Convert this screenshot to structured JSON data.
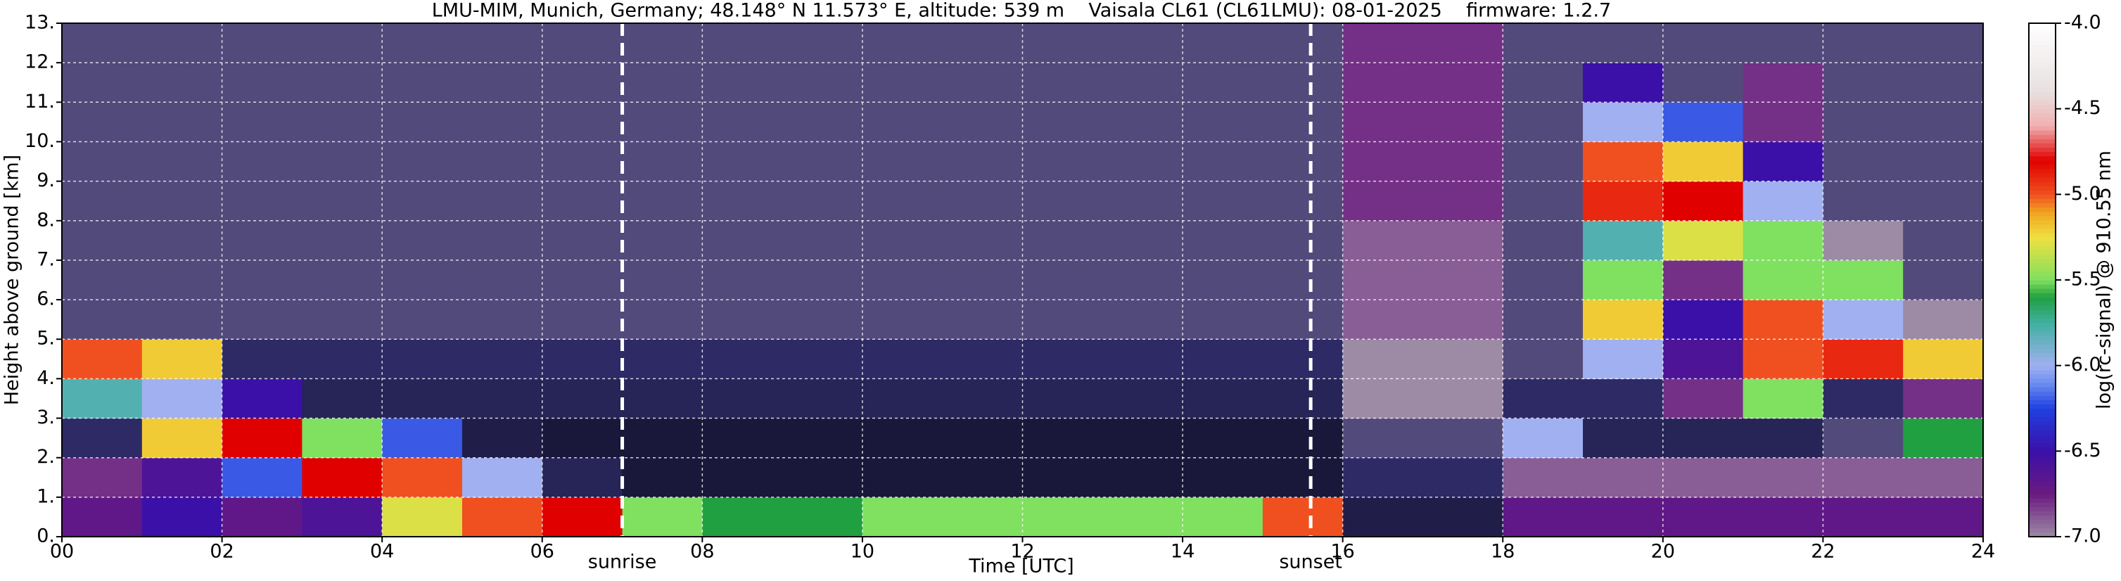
{
  "chart_data": {
    "type": "heatmap",
    "title": "LMU-MIM, Munich, Germany; 48.148° N 11.573° E, altitude: 539 m    Vaisala CL61 (CL61LMU): 08-01-2025    firmware: 1.2.7",
    "x_label": "Time [UTC]",
    "y_label": "Height above ground [km]",
    "colorbar_label": "log(rc-signal) @ 910.55 nm",
    "xlim": [
      0,
      24
    ],
    "ylim": [
      0,
      13
    ],
    "zlim": [
      -7,
      -4
    ],
    "xticks": [
      {
        "value": 0,
        "label": "00"
      },
      {
        "value": 2,
        "label": "02"
      },
      {
        "value": 4,
        "label": "04"
      },
      {
        "value": 6,
        "label": "06"
      },
      {
        "value": 8,
        "label": "08"
      },
      10,
      12,
      14,
      16,
      18,
      20,
      22,
      24
    ],
    "yticks": [
      {
        "value": 0,
        "label": "0."
      },
      {
        "value": 1,
        "label": "1."
      },
      {
        "value": 2,
        "label": "2."
      },
      {
        "value": 3,
        "label": "3."
      },
      {
        "value": 4,
        "label": "4."
      },
      {
        "value": 5,
        "label": "5."
      },
      {
        "value": 6,
        "label": "6."
      },
      {
        "value": 7,
        "label": "7."
      },
      {
        "value": 8,
        "label": "8."
      },
      {
        "value": 9,
        "label": "9."
      },
      {
        "value": 10,
        "label": "10."
      },
      {
        "value": 11,
        "label": "11."
      },
      {
        "value": 12,
        "label": "12."
      },
      {
        "value": 13,
        "label": "13."
      }
    ],
    "zticks": [
      {
        "value": -7,
        "label": "-7.0"
      },
      {
        "value": -6.5,
        "label": "-6.5"
      },
      {
        "value": -6,
        "label": "-6.0"
      },
      {
        "value": -5.5,
        "label": "-5.5"
      },
      {
        "value": -5,
        "label": "-5.0"
      },
      {
        "value": -4.5,
        "label": "-4.5"
      },
      {
        "value": -4,
        "label": "-4.0"
      }
    ],
    "grid": true,
    "grid_color": "#ffffff",
    "colormap": [
      [
        -8,
        "#000000"
      ],
      [
        -7.3,
        "#2d2a66"
      ],
      [
        -7,
        "#9d8aa5"
      ],
      [
        -6.75,
        "#6a1a80"
      ],
      [
        -6.5,
        "#3a10a8"
      ],
      [
        -6.25,
        "#2040e0"
      ],
      [
        -6.1,
        "#6d8ff0"
      ],
      [
        -6,
        "#a0b0f0"
      ],
      [
        -5.75,
        "#40b0a0"
      ],
      [
        -5.6,
        "#20a040"
      ],
      [
        -5.5,
        "#80e060"
      ],
      [
        -5.25,
        "#f0e040"
      ],
      [
        -5.1,
        "#f0a020"
      ],
      [
        -5,
        "#f05020"
      ],
      [
        -4.8,
        "#e00000"
      ],
      [
        -4.6,
        "#f0b0b0"
      ],
      [
        -4.4,
        "#e8e0e0"
      ],
      [
        -4,
        "#ffffff"
      ]
    ],
    "events": [
      {
        "label": "sunrise",
        "x": 7.0
      },
      {
        "label": "sunset",
        "x": 15.6
      }
    ],
    "x_edges": [
      0,
      1,
      2,
      3,
      4,
      5,
      6,
      7,
      8,
      9,
      10,
      11,
      12,
      13,
      14,
      15,
      16,
      17,
      18,
      19,
      20,
      21,
      22,
      23,
      24
    ],
    "y_edges": [
      0,
      1,
      2,
      3,
      4,
      5,
      6,
      7,
      8,
      9,
      10,
      11,
      12,
      13
    ],
    "z": [
      [
        -6.7,
        -6.5,
        -6.7,
        -6.6,
        -5.3,
        -5.0,
        -4.8,
        -5.5,
        -5.6,
        -5.6,
        -5.5,
        -5.5,
        -5.5,
        -5.5,
        -5.5,
        -5.0,
        -7.5,
        -7.5,
        -6.7,
        -6.7,
        -6.7,
        -6.7,
        -6.7,
        -6.7
      ],
      [
        -6.8,
        -6.6,
        -6.2,
        -4.8,
        -5.0,
        -6.0,
        -7.4,
        -7.6,
        -7.6,
        -7.6,
        -7.6,
        -7.6,
        -7.6,
        -7.6,
        -7.6,
        -7.6,
        -7.3,
        -7.3,
        -6.9,
        -6.9,
        -6.9,
        -6.9,
        -6.9,
        -6.9
      ],
      [
        -7.3,
        -5.2,
        -4.8,
        -5.5,
        -6.2,
        -7.5,
        -7.6,
        -7.6,
        -7.6,
        -7.6,
        -7.6,
        -7.6,
        -7.6,
        -7.6,
        -7.6,
        -7.6,
        -7.2,
        -7.2,
        -6.0,
        -7.4,
        -7.4,
        -7.4,
        -7.2,
        -5.6
      ],
      [
        -5.8,
        -6.0,
        -6.5,
        -7.4,
        -7.4,
        -7.4,
        -7.4,
        -7.4,
        -7.4,
        -7.4,
        -7.4,
        -7.4,
        -7.4,
        -7.4,
        -7.4,
        -7.4,
        -7.0,
        -7.0,
        -7.3,
        -7.3,
        -6.8,
        -5.5,
        -7.3,
        -6.8
      ],
      [
        -5.0,
        -5.2,
        -7.3,
        -7.3,
        -7.3,
        -7.3,
        -7.3,
        -7.3,
        -7.3,
        -7.3,
        -7.3,
        -7.3,
        -7.3,
        -7.3,
        -7.3,
        -7.3,
        -7.0,
        -7.0,
        -7.2,
        -6.0,
        -6.6,
        -5.0,
        -4.9,
        -5.2
      ],
      [
        -7.2,
        -7.2,
        -7.2,
        -7.2,
        -7.2,
        -7.2,
        -7.2,
        -7.2,
        -7.2,
        -7.2,
        -7.2,
        -7.2,
        -7.2,
        -7.2,
        -7.2,
        -7.2,
        -6.9,
        -6.9,
        -7.2,
        -5.2,
        -6.5,
        -5.0,
        -6.0,
        -7.0
      ],
      [
        -7.2,
        -7.2,
        -7.2,
        -7.2,
        -7.2,
        -7.2,
        -7.2,
        -7.2,
        -7.2,
        -7.2,
        -7.2,
        -7.2,
        -7.2,
        -7.2,
        -7.2,
        -7.2,
        -6.9,
        -6.9,
        -7.2,
        -5.5,
        -6.8,
        -5.5,
        -5.5,
        -7.2
      ],
      [
        -7.2,
        -7.2,
        -7.2,
        -7.2,
        -7.2,
        -7.2,
        -7.2,
        -7.2,
        -7.2,
        -7.2,
        -7.2,
        -7.2,
        -7.2,
        -7.2,
        -7.2,
        -7.2,
        -6.9,
        -6.9,
        -7.2,
        -5.8,
        -5.3,
        -5.5,
        -7.0,
        -7.2
      ],
      [
        -7.2,
        -7.2,
        -7.2,
        -7.2,
        -7.2,
        -7.2,
        -7.2,
        -7.2,
        -7.2,
        -7.2,
        -7.2,
        -7.2,
        -7.2,
        -7.2,
        -7.2,
        -7.2,
        -6.8,
        -6.8,
        -7.2,
        -4.9,
        -4.8,
        -6.0,
        -7.2,
        -7.2
      ],
      [
        -7.2,
        -7.2,
        -7.2,
        -7.2,
        -7.2,
        -7.2,
        -7.2,
        -7.2,
        -7.2,
        -7.2,
        -7.2,
        -7.2,
        -7.2,
        -7.2,
        -7.2,
        -7.2,
        -6.8,
        -6.8,
        -7.2,
        -5.0,
        -5.2,
        -6.5,
        -7.2,
        -7.2
      ],
      [
        -7.2,
        -7.2,
        -7.2,
        -7.2,
        -7.2,
        -7.2,
        -7.2,
        -7.2,
        -7.2,
        -7.2,
        -7.2,
        -7.2,
        -7.2,
        -7.2,
        -7.2,
        -7.2,
        -6.8,
        -6.8,
        -7.2,
        -6.0,
        -6.2,
        -6.8,
        -7.2,
        -7.2
      ],
      [
        -7.2,
        -7.2,
        -7.2,
        -7.2,
        -7.2,
        -7.2,
        -7.2,
        -7.2,
        -7.2,
        -7.2,
        -7.2,
        -7.2,
        -7.2,
        -7.2,
        -7.2,
        -7.2,
        -6.8,
        -6.8,
        -7.2,
        -6.5,
        -7.2,
        -6.8,
        -7.2,
        -7.2
      ],
      [
        -7.2,
        -7.2,
        -7.2,
        -7.2,
        -7.2,
        -7.2,
        -7.2,
        -7.2,
        -7.2,
        -7.2,
        -7.2,
        -7.2,
        -7.2,
        -7.2,
        -7.2,
        -7.2,
        -6.8,
        -6.8,
        -7.2,
        -7.2,
        -7.2,
        -7.2,
        -7.2,
        -7.2
      ]
    ]
  }
}
